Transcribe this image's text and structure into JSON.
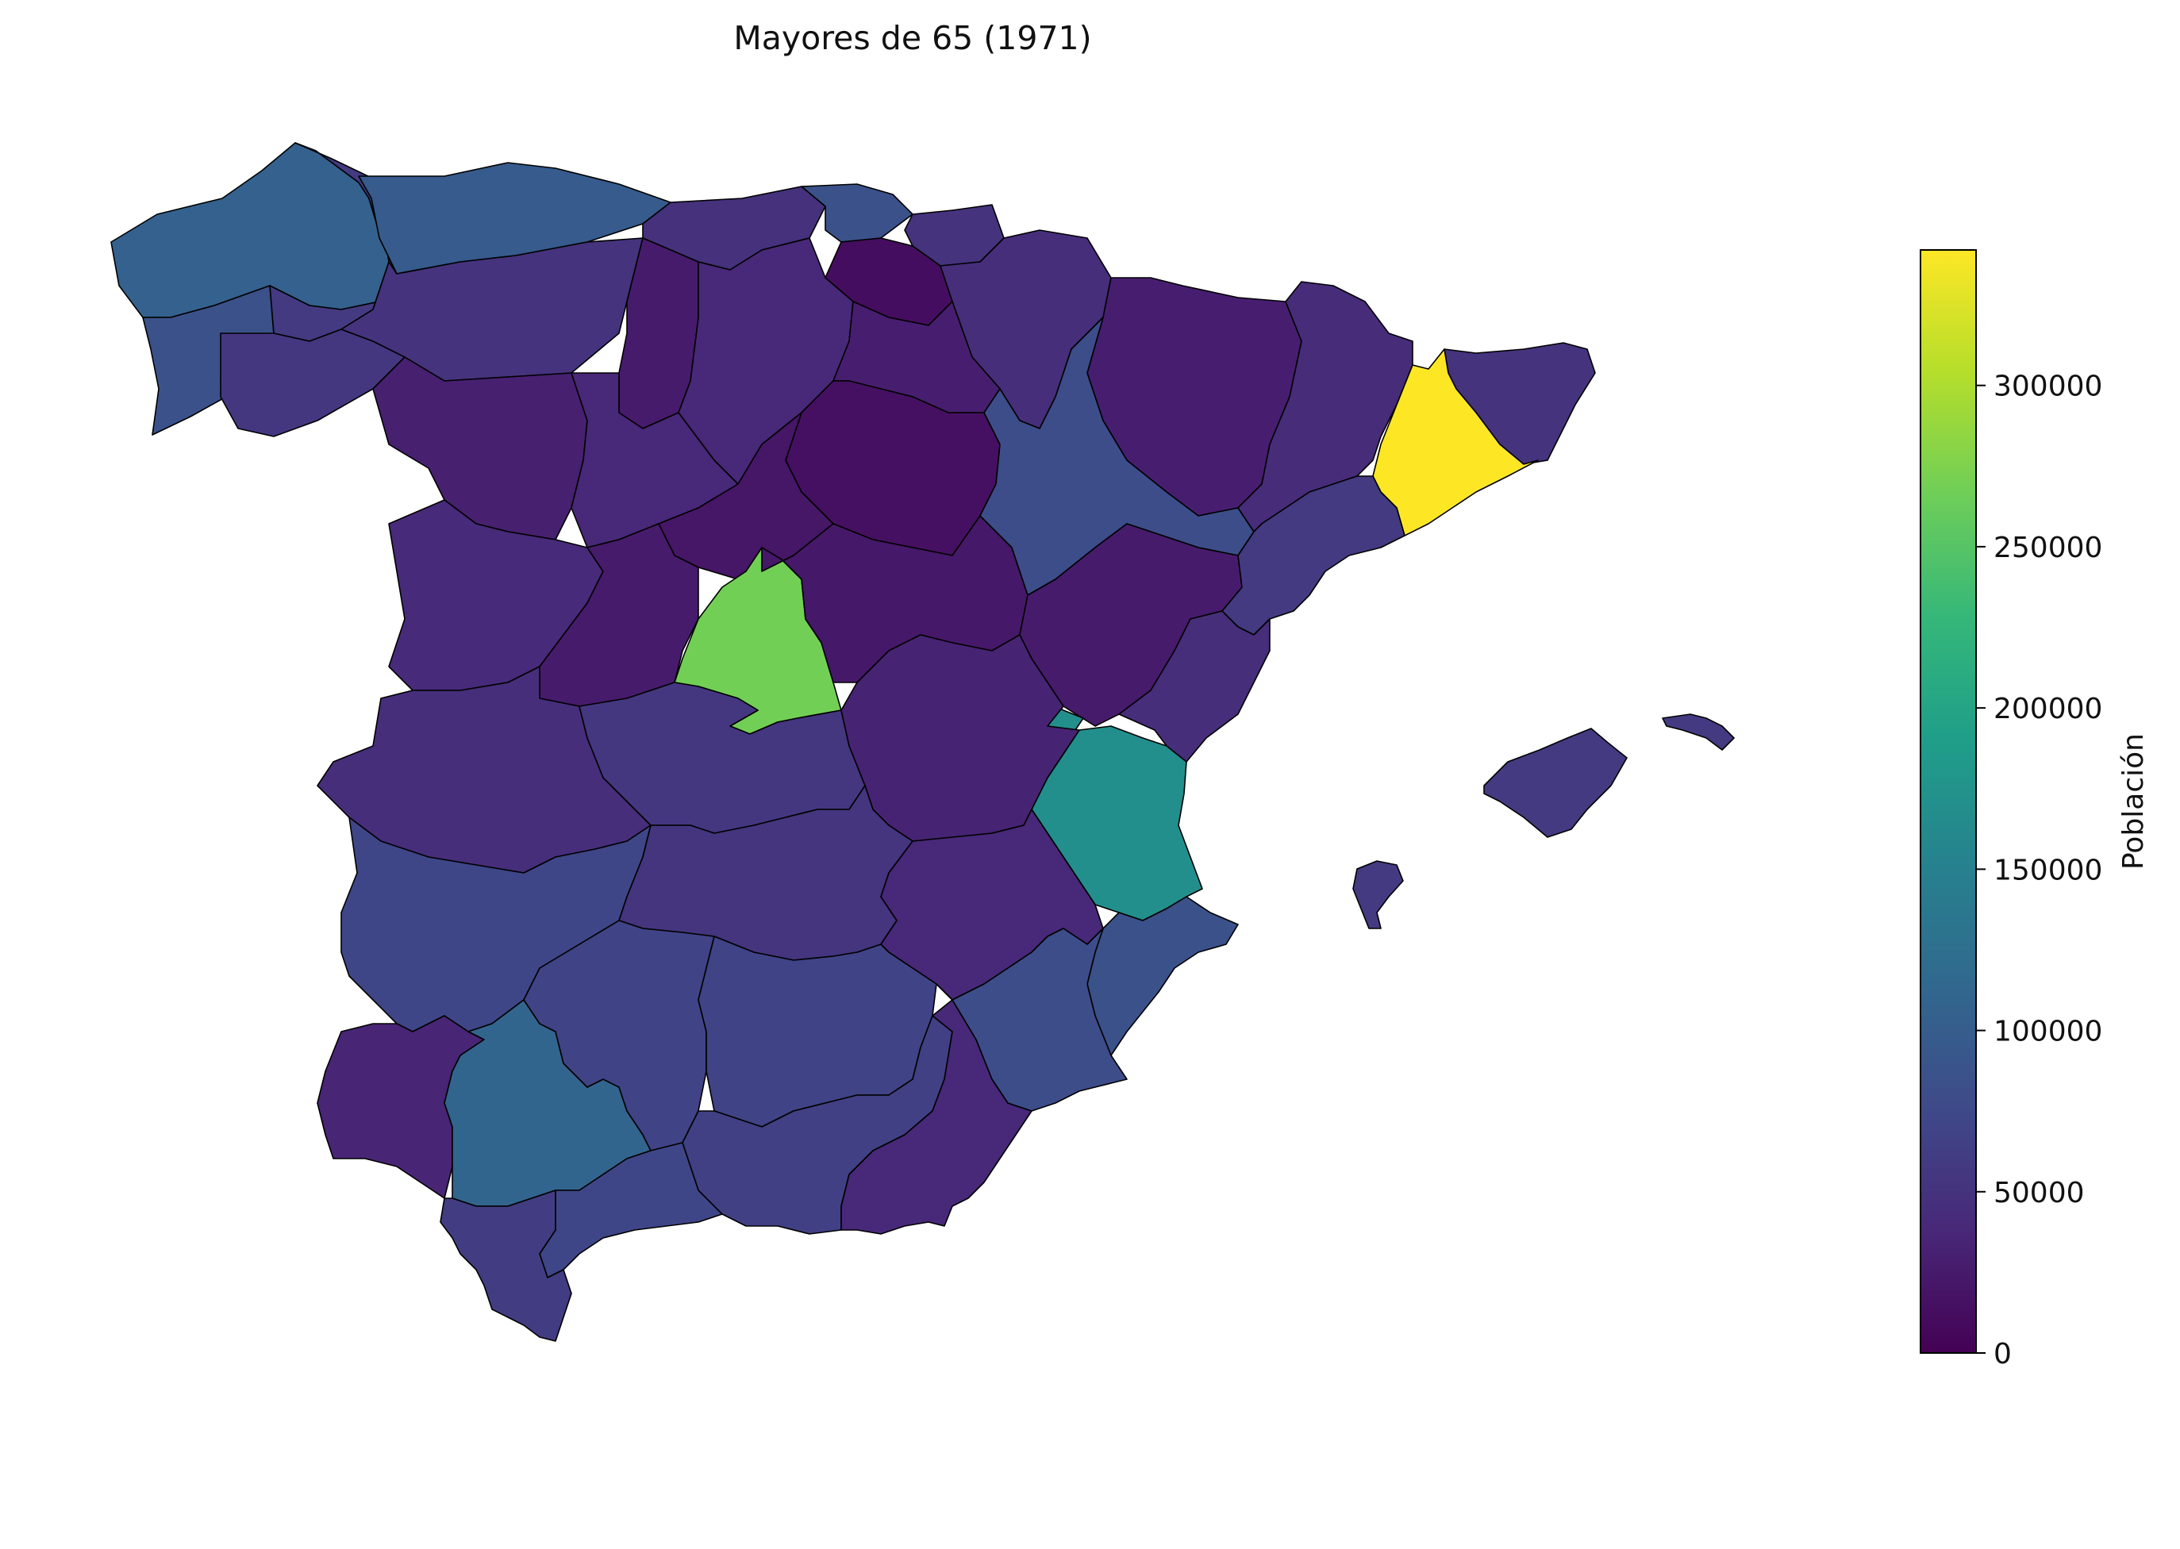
{
  "title": "Mayores de 65 (1971)",
  "colorbar": {
    "label": "Población",
    "min": 0,
    "max": 342000,
    "colormap": "viridis",
    "ticks": [
      0,
      50000,
      100000,
      150000,
      200000,
      250000,
      300000
    ],
    "tick_labels": [
      "0",
      "50000",
      "100000",
      "150000",
      "200000",
      "250000",
      "300000"
    ]
  },
  "colormap_stops": [
    "#440154",
    "#482878",
    "#3e4a89",
    "#31688e",
    "#26828e",
    "#1f9e89",
    "#35b779",
    "#6ece58",
    "#b5de2b",
    "#fde725"
  ],
  "outline_color": "#000000",
  "regions": [
    {
      "id": "a-coruna",
      "value": 105000
    },
    {
      "id": "pontevedra",
      "value": 85000
    },
    {
      "id": "lugo",
      "value": 58000
    },
    {
      "id": "ourense",
      "value": 55000
    },
    {
      "id": "asturias",
      "value": 98000
    },
    {
      "id": "cantabria",
      "value": 48000
    },
    {
      "id": "bizkaia",
      "value": 85000
    },
    {
      "id": "gipuzkoa",
      "value": 50000
    },
    {
      "id": "araba",
      "value": 12000
    },
    {
      "id": "navarra",
      "value": 45000
    },
    {
      "id": "leon",
      "value": 50000
    },
    {
      "id": "palencia",
      "value": 25000
    },
    {
      "id": "burgos",
      "value": 38000
    },
    {
      "id": "la-rioja",
      "value": 28000
    },
    {
      "id": "zamora",
      "value": 30000
    },
    {
      "id": "valladolid",
      "value": 38000
    },
    {
      "id": "soria",
      "value": 15000
    },
    {
      "id": "segovia",
      "value": 20000
    },
    {
      "id": "salamanca",
      "value": 40000
    },
    {
      "id": "avila",
      "value": 25000
    },
    {
      "id": "madrid",
      "value": 268000
    },
    {
      "id": "guadalajara",
      "value": 22000
    },
    {
      "id": "huesca",
      "value": 28000
    },
    {
      "id": "zaragoza",
      "value": 80000
    },
    {
      "id": "teruel",
      "value": 25000
    },
    {
      "id": "lleida",
      "value": 42000
    },
    {
      "id": "girona",
      "value": 50000
    },
    {
      "id": "barcelona",
      "value": 342000
    },
    {
      "id": "tarragona",
      "value": 58000
    },
    {
      "id": "castellon",
      "value": 45000
    },
    {
      "id": "valencia",
      "value": 170000
    },
    {
      "id": "valencia-enclave",
      "value": 170000
    },
    {
      "id": "alicante",
      "value": 85000
    },
    {
      "id": "caceres",
      "value": 45000
    },
    {
      "id": "badajoz",
      "value": 72000
    },
    {
      "id": "toledo",
      "value": 55000
    },
    {
      "id": "cuenca",
      "value": 33000
    },
    {
      "id": "ciudad-real",
      "value": 52000
    },
    {
      "id": "albacete",
      "value": 38000
    },
    {
      "id": "huelva",
      "value": 35000
    },
    {
      "id": "sevilla",
      "value": 110000
    },
    {
      "id": "cordoba",
      "value": 68000
    },
    {
      "id": "jaen",
      "value": 68000
    },
    {
      "id": "granada",
      "value": 65000
    },
    {
      "id": "almeria",
      "value": 38000
    },
    {
      "id": "malaga",
      "value": 72000
    },
    {
      "id": "cadiz",
      "value": 60000
    },
    {
      "id": "murcia",
      "value": 80000
    },
    {
      "id": "mallorca",
      "value": 58000
    },
    {
      "id": "menorca",
      "value": 58000
    },
    {
      "id": "ibiza",
      "value": 58000
    }
  ]
}
